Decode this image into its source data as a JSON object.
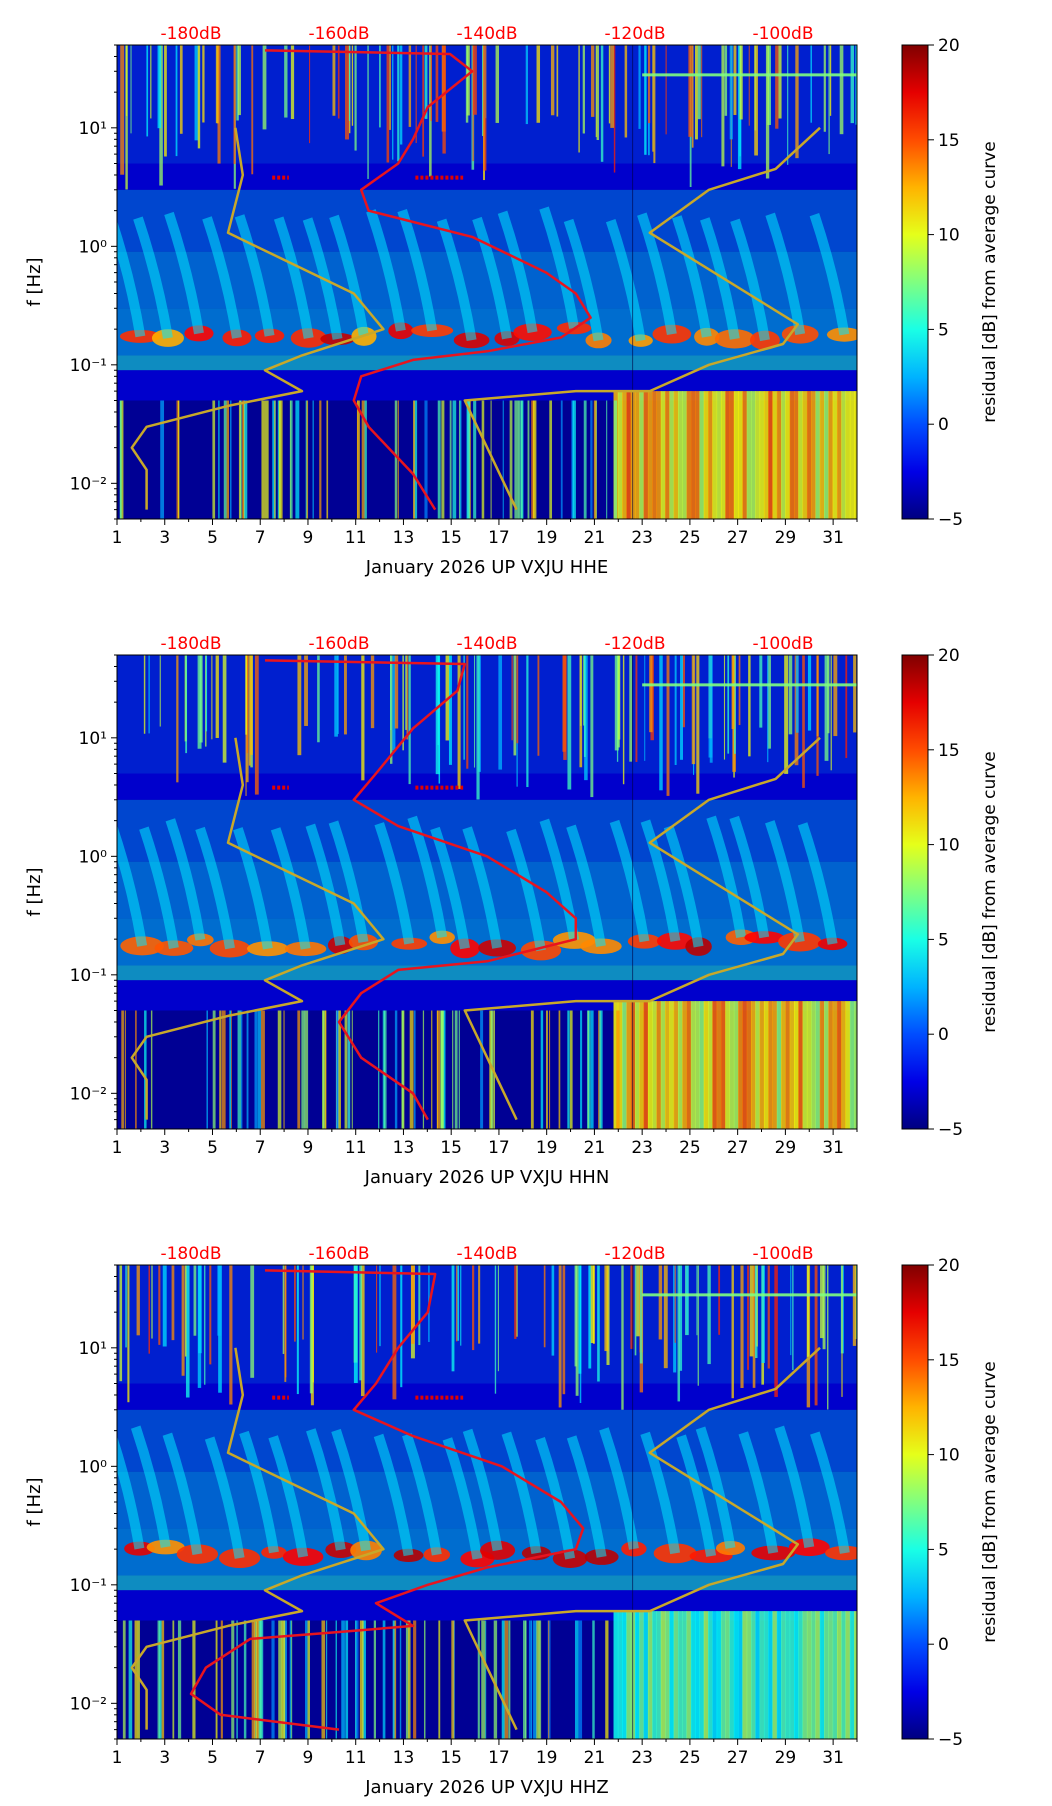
{
  "figure": {
    "colormap": "jet",
    "colorbar": {
      "label": "residual [dB] from average curve",
      "min": -5,
      "max": 20,
      "ticks": [
        "20",
        "15",
        "10",
        "5",
        "0",
        "−5"
      ]
    },
    "ylabel": "f [Hz]",
    "yticks": [
      "10¹",
      "10⁰",
      "10⁻¹",
      "10⁻²"
    ],
    "xticks": [
      "1",
      "3",
      "5",
      "7",
      "9",
      "11",
      "13",
      "15",
      "17",
      "19",
      "21",
      "23",
      "25",
      "27",
      "29",
      "31"
    ],
    "top_db_ticks": [
      "-180dB",
      "-160dB",
      "-140dB",
      "-120dB",
      "-100dB"
    ],
    "colors": {
      "db_labels": "#ff0000",
      "red_curve": "#e8141e",
      "gold_curve": "#c8a82a",
      "background_low": "#00008f",
      "mid_blue": "#0a3cff"
    }
  },
  "chart_data": [
    {
      "type": "heatmap",
      "title": "January 2026 UP VXJU  HHE",
      "xlabel": "January 2026 UP VXJU  HHE",
      "ylabel": "f [Hz]",
      "xlim": [
        1,
        32
      ],
      "ylim_hz": [
        0.005,
        50
      ],
      "yscale": "log",
      "zlabel": "residual [dB] from average curve",
      "zlim": [
        -5,
        20
      ],
      "top_axis_db": [
        -180,
        -160,
        -140,
        -120,
        -100
      ],
      "series": [
        {
          "name": "red noise curve (dB vs f)",
          "points_db_hz": [
            [
              -170,
              45
            ],
            [
              -145,
              42
            ],
            [
              -142,
              30
            ],
            [
              -148,
              15
            ],
            [
              -150,
              8
            ],
            [
              -152,
              5
            ],
            [
              -157,
              3
            ],
            [
              -156,
              2
            ],
            [
              -142,
              1.2
            ],
            [
              -132,
              0.6
            ],
            [
              -128,
              0.4
            ],
            [
              -126,
              0.25
            ],
            [
              -130,
              0.17
            ],
            [
              -140,
              0.13
            ],
            [
              -150,
              0.11
            ],
            [
              -157,
              0.08
            ],
            [
              -158,
              0.05
            ],
            [
              -156,
              0.03
            ],
            [
              -150,
              0.012
            ],
            [
              -147,
              0.006
            ]
          ]
        },
        {
          "name": "gold model curve (dB vs f)",
          "points_db_hz": [
            [
              -186,
              0.006
            ],
            [
              -186,
              0.013
            ],
            [
              -188,
              0.02
            ],
            [
              -186,
              0.03
            ],
            [
              -175,
              0.045
            ],
            [
              -165,
              0.06
            ],
            [
              -170,
              0.09
            ],
            [
              -165,
              0.12
            ],
            [
              -154,
              0.2
            ],
            [
              -158,
              0.4
            ],
            [
              -175,
              1.3
            ],
            [
              -173,
              4
            ],
            [
              -174,
              10
            ]
          ]
        },
        {
          "name": "gold model curve 2 (dB vs f)",
          "points_db_hz": [
            [
              -136,
              0.006
            ],
            [
              -143,
              0.05
            ],
            [
              -128,
              0.06
            ],
            [
              -118,
              0.06
            ],
            [
              -110,
              0.1
            ],
            [
              -100,
              0.15
            ],
            [
              -98,
              0.22
            ],
            [
              -118,
              1.3
            ],
            [
              -110,
              3
            ],
            [
              -101,
              4.5
            ],
            [
              -95,
              10
            ]
          ]
        }
      ]
    },
    {
      "type": "heatmap",
      "title": "January 2026 UP VXJU  HHN",
      "xlabel": "January 2026 UP VXJU  HHN",
      "ylabel": "f [Hz]",
      "xlim": [
        1,
        32
      ],
      "ylim_hz": [
        0.005,
        50
      ],
      "yscale": "log",
      "zlabel": "residual [dB] from average curve",
      "zlim": [
        -5,
        20
      ],
      "top_axis_db": [
        -180,
        -160,
        -140,
        -120,
        -100
      ],
      "series": [
        {
          "name": "red noise curve (dB vs f)",
          "points_db_hz": [
            [
              -170,
              45
            ],
            [
              -143,
              42
            ],
            [
              -144,
              25
            ],
            [
              -150,
              12
            ],
            [
              -155,
              5
            ],
            [
              -158,
              3
            ],
            [
              -152,
              1.8
            ],
            [
              -140,
              1.0
            ],
            [
              -132,
              0.5
            ],
            [
              -128,
              0.3
            ],
            [
              -128,
              0.2
            ],
            [
              -140,
              0.13
            ],
            [
              -152,
              0.11
            ],
            [
              -157,
              0.07
            ],
            [
              -160,
              0.04
            ],
            [
              -157,
              0.02
            ],
            [
              -150,
              0.01
            ],
            [
              -148,
              0.006
            ]
          ]
        },
        {
          "name": "gold model curve (dB vs f)",
          "points_db_hz": [
            [
              -186,
              0.006
            ],
            [
              -186,
              0.013
            ],
            [
              -188,
              0.02
            ],
            [
              -186,
              0.03
            ],
            [
              -175,
              0.045
            ],
            [
              -165,
              0.06
            ],
            [
              -170,
              0.09
            ],
            [
              -165,
              0.12
            ],
            [
              -154,
              0.2
            ],
            [
              -158,
              0.4
            ],
            [
              -175,
              1.3
            ],
            [
              -173,
              4
            ],
            [
              -174,
              10
            ]
          ]
        },
        {
          "name": "gold model curve 2 (dB vs f)",
          "points_db_hz": [
            [
              -136,
              0.006
            ],
            [
              -143,
              0.05
            ],
            [
              -128,
              0.06
            ],
            [
              -118,
              0.06
            ],
            [
              -110,
              0.1
            ],
            [
              -100,
              0.15
            ],
            [
              -98,
              0.22
            ],
            [
              -118,
              1.3
            ],
            [
              -110,
              3
            ],
            [
              -101,
              4.5
            ],
            [
              -95,
              10
            ]
          ]
        }
      ]
    },
    {
      "type": "heatmap",
      "title": "January 2026 UP VXJU  HHZ",
      "xlabel": "January 2026 UP VXJU  HHZ",
      "ylabel": "f [Hz]",
      "xlim": [
        1,
        32
      ],
      "ylim_hz": [
        0.005,
        50
      ],
      "yscale": "log",
      "zlabel": "residual [dB] from average curve",
      "zlim": [
        -5,
        20
      ],
      "top_axis_db": [
        -180,
        -160,
        -140,
        -120,
        -100
      ],
      "series": [
        {
          "name": "red noise curve (dB vs f)",
          "points_db_hz": [
            [
              -170,
              45
            ],
            [
              -147,
              42
            ],
            [
              -148,
              20
            ],
            [
              -152,
              10
            ],
            [
              -155,
              5
            ],
            [
              -158,
              3
            ],
            [
              -150,
              1.8
            ],
            [
              -138,
              1.0
            ],
            [
              -130,
              0.5
            ],
            [
              -127,
              0.3
            ],
            [
              -128,
              0.2
            ],
            [
              -140,
              0.14
            ],
            [
              -148,
              0.1
            ],
            [
              -155,
              0.07
            ],
            [
              -150,
              0.045
            ],
            [
              -160,
              0.04
            ],
            [
              -172,
              0.035
            ],
            [
              -178,
              0.02
            ],
            [
              -180,
              0.012
            ],
            [
              -176,
              0.008
            ],
            [
              -160,
              0.006
            ]
          ]
        },
        {
          "name": "gold model curve (dB vs f)",
          "points_db_hz": [
            [
              -186,
              0.006
            ],
            [
              -186,
              0.013
            ],
            [
              -188,
              0.02
            ],
            [
              -186,
              0.03
            ],
            [
              -175,
              0.045
            ],
            [
              -165,
              0.06
            ],
            [
              -170,
              0.09
            ],
            [
              -165,
              0.12
            ],
            [
              -154,
              0.2
            ],
            [
              -158,
              0.4
            ],
            [
              -175,
              1.3
            ],
            [
              -173,
              4
            ],
            [
              -174,
              10
            ]
          ]
        },
        {
          "name": "gold model curve 2 (dB vs f)",
          "points_db_hz": [
            [
              -136,
              0.006
            ],
            [
              -143,
              0.05
            ],
            [
              -128,
              0.06
            ],
            [
              -118,
              0.06
            ],
            [
              -110,
              0.1
            ],
            [
              -100,
              0.15
            ],
            [
              -98,
              0.22
            ],
            [
              -118,
              1.3
            ],
            [
              -110,
              3
            ],
            [
              -101,
              4.5
            ],
            [
              -95,
              10
            ]
          ]
        }
      ]
    }
  ]
}
